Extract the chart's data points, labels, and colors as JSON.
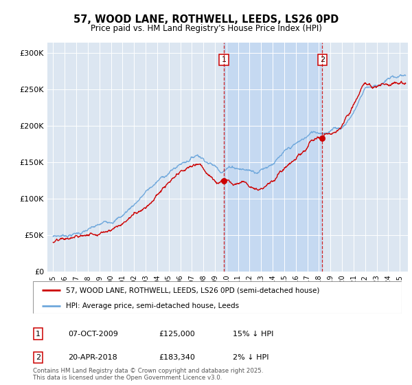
{
  "title": "57, WOOD LANE, ROTHWELL, LEEDS, LS26 0PD",
  "subtitle": "Price paid vs. HM Land Registry's House Price Index (HPI)",
  "ylabel_ticks": [
    "£0",
    "£50K",
    "£100K",
    "£150K",
    "£200K",
    "£250K",
    "£300K"
  ],
  "ytick_vals": [
    0,
    50000,
    100000,
    150000,
    200000,
    250000,
    300000
  ],
  "ylim": [
    0,
    315000
  ],
  "xlim_start": 1994.5,
  "xlim_end": 2025.7,
  "hpi_color": "#6fa8dc",
  "price_color": "#cc0000",
  "background_chart": "#dce6f1",
  "shaded_color": "#c5d9f1",
  "marker1_x": 2009.77,
  "marker1_y": 125000,
  "marker2_x": 2018.3,
  "marker2_y": 183340,
  "legend_line1": "57, WOOD LANE, ROTHWELL, LEEDS, LS26 0PD (semi-detached house)",
  "legend_line2": "HPI: Average price, semi-detached house, Leeds",
  "footer": "Contains HM Land Registry data © Crown copyright and database right 2025.\nThis data is licensed under the Open Government Licence v3.0.",
  "xtick_years": [
    1995,
    1996,
    1997,
    1998,
    1999,
    2000,
    2001,
    2002,
    2003,
    2004,
    2005,
    2006,
    2007,
    2008,
    2009,
    2010,
    2011,
    2012,
    2013,
    2014,
    2015,
    2016,
    2017,
    2018,
    2019,
    2020,
    2021,
    2022,
    2023,
    2024,
    2025
  ]
}
